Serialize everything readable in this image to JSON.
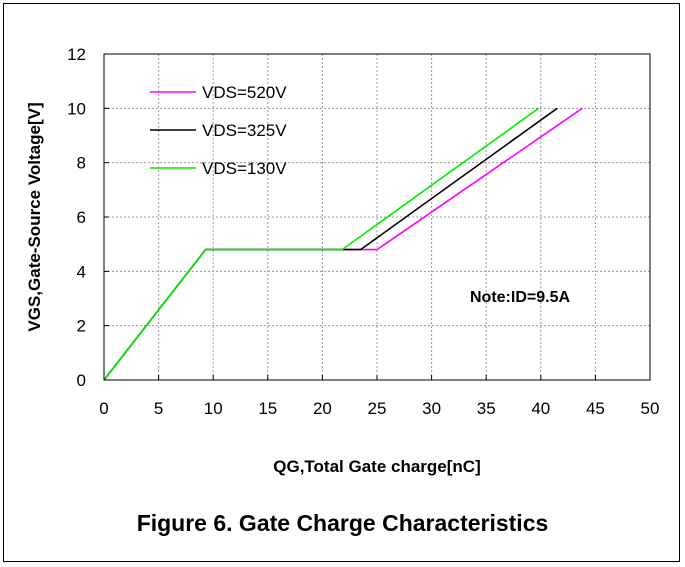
{
  "caption": "Figure 6. Gate Charge Characteristics",
  "chart_data": {
    "type": "line",
    "xlabel": "QG,Total Gate charge[nC]",
    "ylabel": "VGS,Gate-Source Voltage[V]",
    "xlim": [
      0,
      50
    ],
    "ylim": [
      0,
      12
    ],
    "x_ticks": [
      0,
      5,
      10,
      15,
      20,
      25,
      30,
      35,
      40,
      45,
      50
    ],
    "y_ticks": [
      0,
      2,
      4,
      6,
      8,
      10,
      12
    ],
    "grid": true,
    "legend_position": "top-left",
    "annotation": "Note:ID=9.5A",
    "series": [
      {
        "name": "VDS=520V",
        "color": "#ff00ff",
        "points": [
          [
            0,
            0
          ],
          [
            9.3,
            4.8
          ],
          [
            25,
            4.8
          ],
          [
            43.8,
            10
          ]
        ]
      },
      {
        "name": "VDS=325V",
        "color": "#000000",
        "points": [
          [
            0,
            0
          ],
          [
            9.3,
            4.8
          ],
          [
            23.5,
            4.8
          ],
          [
            41.5,
            10
          ]
        ]
      },
      {
        "name": "VDS=130V",
        "color": "#00ee00",
        "points": [
          [
            0,
            0
          ],
          [
            9.3,
            4.8
          ],
          [
            21.8,
            4.8
          ],
          [
            39.8,
            10
          ]
        ]
      }
    ]
  }
}
